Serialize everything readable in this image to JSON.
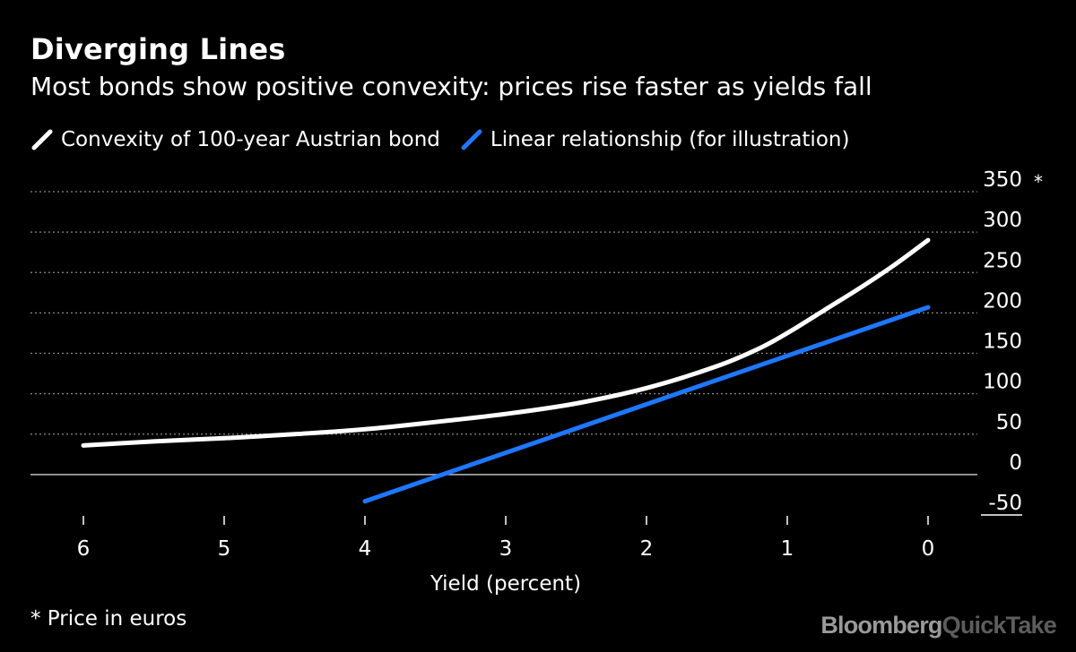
{
  "chart_data": {
    "type": "line",
    "title": "Diverging Lines",
    "subtitle": "Most bonds show positive convexity: prices rise faster as yields fall",
    "xlabel": "Yield (percent)",
    "ylabel_marker": "*",
    "footnote": "* Price in euros",
    "x_reversed": true,
    "xlim": [
      6,
      0
    ],
    "ylim": [
      -50,
      350
    ],
    "x_ticks": [
      6,
      5,
      4,
      3,
      2,
      1,
      0
    ],
    "y_ticks": [
      350,
      300,
      250,
      200,
      150,
      100,
      50,
      0,
      -50
    ],
    "grid": true,
    "legend_position": "top-left",
    "series": [
      {
        "name": "Convexity of 100-year Austrian bond",
        "color": "#ffffff",
        "x": [
          6,
          5.5,
          5,
          4.5,
          4,
          3.5,
          3,
          2.5,
          2,
          1.5,
          1.2,
          1,
          0.75,
          0.5,
          0.25,
          0
        ],
        "y": [
          36,
          41,
          45,
          50,
          56,
          65,
          75,
          88,
          107,
          134,
          156,
          175,
          202,
          229,
          258,
          290
        ]
      },
      {
        "name": "Linear relationship (for illustration)",
        "color": "#1f77ff",
        "x": [
          4,
          0
        ],
        "y": [
          -33,
          207
        ]
      }
    ]
  },
  "brand": {
    "part1": "Bloomberg",
    "part2": "QuickTake"
  }
}
